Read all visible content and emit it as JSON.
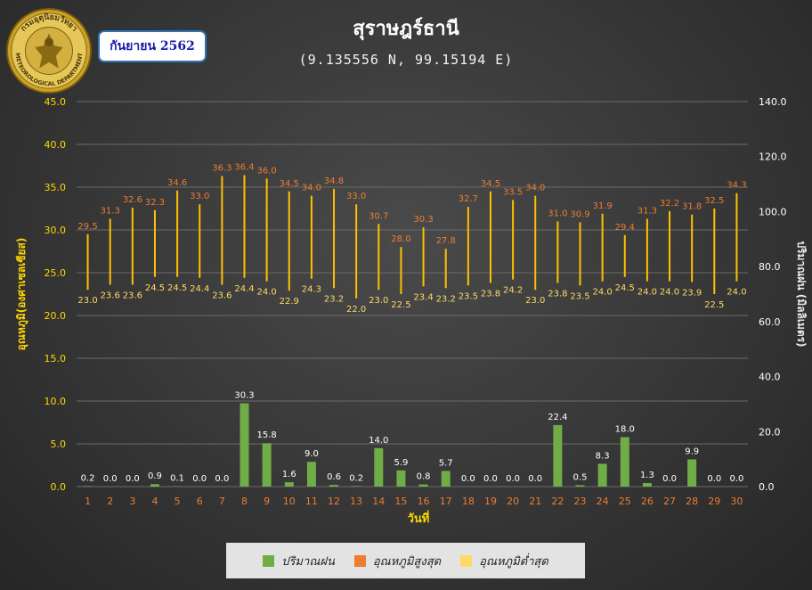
{
  "header": {
    "logo_text": "กรมอุตุนิยมวิทยา",
    "logo_text_en": "METEOROLOGICAL DEPARTMENT",
    "month_label": "กันยายน 2562",
    "title": "สุราษฎร์ธานี",
    "subtitle": "(9.135556 N, 99.15194 E)"
  },
  "colors": {
    "rain": "#70ad47",
    "tmax_label": "#ed7d31",
    "tmin_label": "#ffd966",
    "range_line": "#ffc000",
    "left_axis": "#ffd700",
    "grid": "#6b6b6b"
  },
  "chart_data": {
    "type": "bar",
    "title": "สุราษฎร์ธานี",
    "subtitle": "(9.135556 N, 99.15194 E)",
    "xlabel": "วันที่",
    "ylabel_left": "อุณหภูมิ(องศาเซลเซียส)",
    "ylabel_right": "ปริมาณฝน (มิลลิเมตร)",
    "ylim_left": [
      0,
      45
    ],
    "ylim_right": [
      0,
      140
    ],
    "yticks_left": [
      "0.0",
      "5.0",
      "10.0",
      "15.0",
      "20.0",
      "25.0",
      "30.0",
      "35.0",
      "40.0",
      "45.0"
    ],
    "yticks_right": [
      "0.0",
      "20.0",
      "40.0",
      "60.0",
      "80.0",
      "100.0",
      "120.0",
      "140.0"
    ],
    "categories": [
      "1",
      "2",
      "3",
      "4",
      "5",
      "6",
      "7",
      "8",
      "9",
      "10",
      "11",
      "12",
      "13",
      "14",
      "15",
      "16",
      "17",
      "18",
      "19",
      "20",
      "21",
      "22",
      "23",
      "24",
      "25",
      "26",
      "27",
      "28",
      "29",
      "30"
    ],
    "series": [
      {
        "name": "ปริมาณฝน",
        "axis": "right",
        "values": [
          0.2,
          0.0,
          0.0,
          0.9,
          0.1,
          0.0,
          0.0,
          30.3,
          15.8,
          1.6,
          9.0,
          0.6,
          0.2,
          14.0,
          5.9,
          0.8,
          5.7,
          0.0,
          0.0,
          0.0,
          0.0,
          22.4,
          0.5,
          8.3,
          18.0,
          1.3,
          0.0,
          9.9,
          0.0,
          0.0
        ],
        "labels": [
          "0.2",
          "0.0",
          "0.0",
          "0.9",
          "0.1",
          "0.0",
          "0.0",
          "30.3",
          "15.8",
          "1.6",
          "9.0",
          "0.6",
          "0.2",
          "14.0",
          "5.9",
          "0.8",
          "5.7",
          "0.0",
          "0.0",
          "0.0",
          "0.0",
          "22.4",
          "0.5",
          "8.3",
          "18.0",
          "1.3",
          "0.0",
          "9.9",
          "0.0",
          "0.0"
        ]
      },
      {
        "name": "อุณหภูมิสูงสุด",
        "axis": "left",
        "values": [
          29.5,
          31.3,
          32.6,
          32.3,
          34.6,
          33.0,
          36.3,
          36.4,
          36.0,
          34.5,
          34.0,
          34.8,
          33.0,
          30.7,
          28.0,
          30.3,
          27.8,
          32.7,
          34.5,
          33.5,
          34.0,
          31.0,
          30.9,
          31.9,
          29.4,
          31.3,
          32.2,
          31.8,
          32.5,
          34.3
        ],
        "labels": [
          "29.5",
          "31.3",
          "32.6",
          "32.3",
          "34.6",
          "33.0",
          "36.3",
          "36.4",
          "36.0",
          "34.5",
          "34.0",
          "34.8",
          "33.0",
          "30.7",
          "28.0",
          "30.3",
          "27.8",
          "32.7",
          "34.5",
          "33.5",
          "34.0",
          "31.0",
          "30.9",
          "31.9",
          "29.4",
          "31.3",
          "32.2",
          "31.8",
          "32.5",
          "34.3"
        ]
      },
      {
        "name": "อุณหภูมิต่ำสุด",
        "axis": "left",
        "values": [
          23.0,
          23.6,
          23.6,
          24.5,
          24.5,
          24.4,
          23.6,
          24.4,
          24.0,
          22.9,
          24.3,
          23.2,
          22.0,
          23.0,
          22.5,
          23.4,
          23.2,
          23.5,
          23.8,
          24.2,
          23.0,
          23.8,
          23.5,
          24.0,
          24.5,
          24.0,
          24.0,
          23.9,
          22.5,
          24.0
        ],
        "labels": [
          "23.0",
          "23.6",
          "23.6",
          "24.5",
          "24.5",
          "24.4",
          "23.6",
          "24.4",
          "24.0",
          "22.9",
          "24.3",
          "23.2",
          "22.0",
          "23.0",
          "22.5",
          "23.4",
          "23.2",
          "23.5",
          "23.8",
          "24.2",
          "23.0",
          "23.8",
          "23.5",
          "24.0",
          "24.5",
          "24.0",
          "24.0",
          "23.9",
          "22.5",
          "24.0"
        ]
      }
    ],
    "grid": true,
    "legend_position": "bottom"
  },
  "legend": {
    "rain": "ปริมาณฝน",
    "tmax": "อุณหภูมิสูงสุด",
    "tmin": "อุณหภูมิต่ำสุด",
    "tmin_swatch": "#ffd966",
    "tmax_swatch": "#ed7d31",
    "rain_swatch": "#70ad47"
  }
}
